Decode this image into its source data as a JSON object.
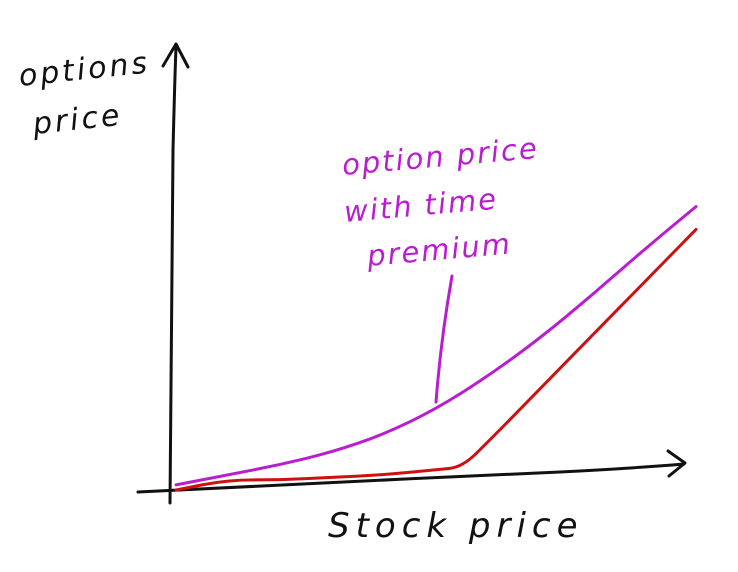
{
  "chart_data": {
    "type": "line",
    "title": "",
    "xlabel": "Stock price",
    "ylabel_lines": [
      "options",
      "price"
    ],
    "grid": false,
    "legend": "none",
    "x_ticks": [],
    "y_ticks": [],
    "series": [
      {
        "color": "#b81ed0",
        "x": [
          0,
          0.1,
          0.2,
          0.3,
          0.4,
          0.5,
          0.6,
          0.7,
          0.8,
          0.9,
          1.0
        ],
        "y": [
          0.02,
          0.06,
          0.1,
          0.15,
          0.22,
          0.32,
          0.45,
          0.6,
          0.77,
          0.95,
          1.12
        ]
      },
      {
        "color": "#cc1111",
        "x": [
          0,
          0.1,
          0.2,
          0.3,
          0.4,
          0.5,
          0.55,
          0.6,
          0.7,
          0.8,
          0.9,
          1.0
        ],
        "y": [
          0,
          0.04,
          0.04,
          0.05,
          0.06,
          0.08,
          0.09,
          0.19,
          0.4,
          0.61,
          0.82,
          1.03
        ]
      }
    ],
    "annotations": [
      {
        "lines": [
          "option price",
          "with time",
          "premium"
        ],
        "color": "#b81ed0",
        "points_to_x": 0.52
      }
    ]
  }
}
